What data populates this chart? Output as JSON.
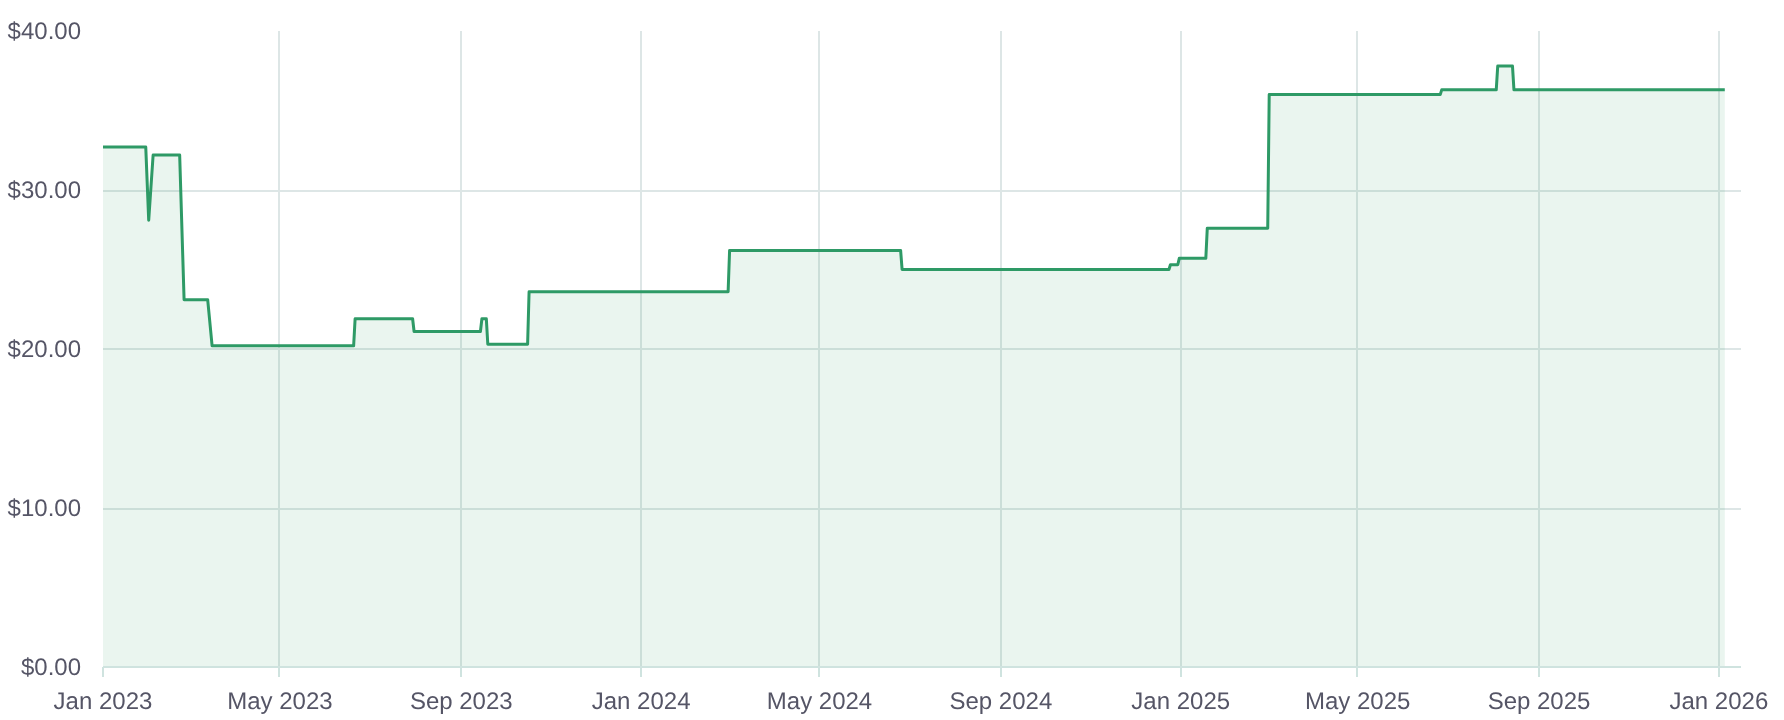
{
  "chart_data": {
    "type": "area",
    "x": [
      "2023-01-01",
      "2023-01-30",
      "2023-02-01",
      "2023-02-04",
      "2023-02-22",
      "2023-02-25",
      "2023-03-13",
      "2023-03-16",
      "2023-06-20",
      "2023-06-21",
      "2023-07-30",
      "2023-07-31",
      "2023-09-14",
      "2023-09-15",
      "2023-09-18",
      "2023-09-19",
      "2023-10-16",
      "2023-10-17",
      "2024-02-29",
      "2024-03-01",
      "2024-06-25",
      "2024-06-26",
      "2024-12-24",
      "2024-12-25",
      "2024-12-30",
      "2024-12-31",
      "2025-01-18",
      "2025-01-19",
      "2025-03-01",
      "2025-03-02",
      "2025-06-26",
      "2025-06-27",
      "2025-08-03",
      "2025-08-04",
      "2025-08-14",
      "2025-08-15",
      "2026-01-05"
    ],
    "series": [
      {
        "color": "#2e9a66",
        "values": [
          32.7,
          32.7,
          28.1,
          32.2,
          32.2,
          23.1,
          23.1,
          20.2,
          20.2,
          21.9,
          21.9,
          21.1,
          21.1,
          21.9,
          21.9,
          20.3,
          20.3,
          23.6,
          23.6,
          26.2,
          26.2,
          25.0,
          25.0,
          25.3,
          25.3,
          25.7,
          25.7,
          27.6,
          27.6,
          36.0,
          36.0,
          36.3,
          36.3,
          37.8,
          37.8,
          36.3,
          36.3
        ]
      }
    ],
    "xlim": [
      "2023-01-01",
      "2026-01-16"
    ],
    "xticks": [
      {
        "value": "2023-01-01",
        "label": "Jan 2023"
      },
      {
        "value": "2023-05-01",
        "label": "May 2023"
      },
      {
        "value": "2023-09-01",
        "label": "Sep 2023"
      },
      {
        "value": "2024-01-01",
        "label": "Jan 2024"
      },
      {
        "value": "2024-05-01",
        "label": "May 2024"
      },
      {
        "value": "2024-09-01",
        "label": "Sep 2024"
      },
      {
        "value": "2025-01-01",
        "label": "Jan 2025"
      },
      {
        "value": "2025-05-01",
        "label": "May 2025"
      },
      {
        "value": "2025-09-01",
        "label": "Sep 2025"
      },
      {
        "value": "2026-01-01",
        "label": "Jan 2026"
      }
    ],
    "ylim": [
      0,
      40
    ],
    "yticks": [
      {
        "value": 0,
        "label": "$0.00"
      },
      {
        "value": 10,
        "label": "$10.00"
      },
      {
        "value": 20,
        "label": "$20.00"
      },
      {
        "value": 30,
        "label": "$30.00"
      },
      {
        "value": 40,
        "label": "$40.00"
      }
    ],
    "grid": true
  }
}
